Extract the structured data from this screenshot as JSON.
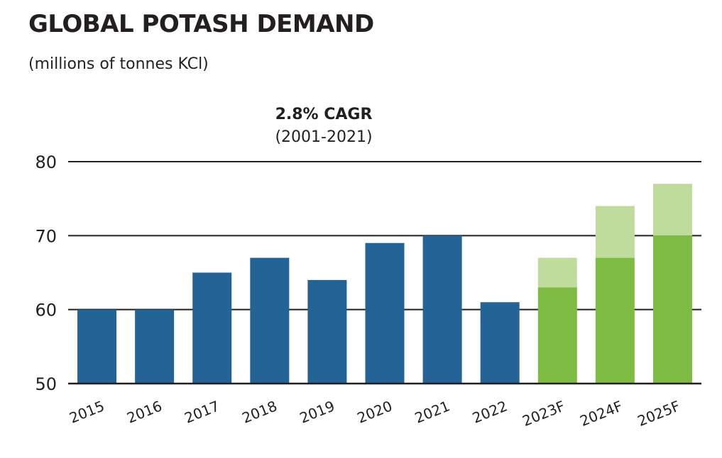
{
  "title": "GLOBAL POTASH DEMAND",
  "subtitle": "(millions of tonnes KCl)",
  "annotation": {
    "line1": "2.8% CAGR",
    "line2": "(2001-2021)"
  },
  "colors": {
    "historical": "#236396",
    "forecast_low": "#7dbb42",
    "forecast_range": "#c0dc9d",
    "text": "#231f20"
  },
  "chart_data": {
    "type": "bar",
    "categories": [
      "2015",
      "2016",
      "2017",
      "2018",
      "2019",
      "2020",
      "2021",
      "2022",
      "2023F",
      "2024F",
      "2025F"
    ],
    "series": [
      {
        "values": [
          60,
          60,
          65,
          67,
          64,
          69,
          70,
          61,
          63,
          67,
          70
        ]
      },
      {
        "values": [
          null,
          null,
          null,
          null,
          null,
          null,
          null,
          null,
          67,
          74,
          77
        ]
      }
    ],
    "ylim": [
      50,
      80
    ],
    "yticks": [
      50,
      60,
      70,
      80
    ],
    "grid": true,
    "title": "GLOBAL POTASH DEMAND",
    "ylabel": "(millions of tonnes KCl)",
    "xlabel": ""
  }
}
